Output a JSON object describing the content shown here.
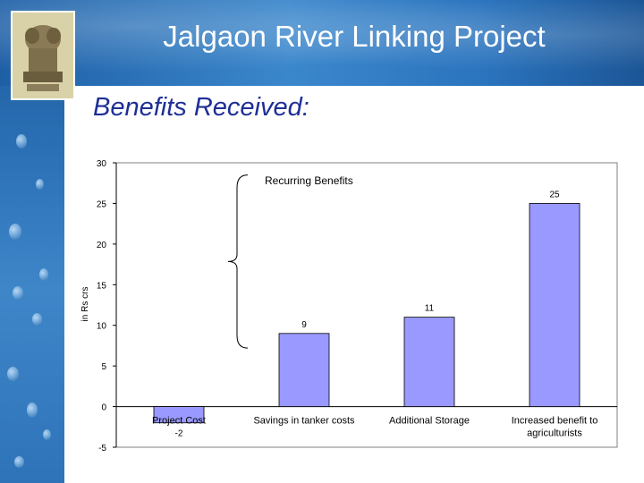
{
  "slide": {
    "title": "Jalgaon River Linking Project",
    "subtitle": "Benefits Received:"
  },
  "annotations": {
    "recurring_benefits": "Recurring Benefits"
  },
  "colors": {
    "bar_fill": "#9999ff",
    "title_text": "#ffffff",
    "subtitle_text": "#1e2f95"
  },
  "chart_data": {
    "type": "bar",
    "title": "",
    "xlabel": "",
    "ylabel": "in Rs crs",
    "ylim": [
      -5,
      30
    ],
    "yticks": [
      30,
      25,
      20,
      15,
      10,
      5,
      0,
      -5
    ],
    "ytick_labels": [
      "30",
      "25",
      "20",
      "15",
      "10",
      "5",
      "0",
      "-5"
    ],
    "categories": [
      "Project Cost",
      "Savings in tanker costs",
      "Additional Storage",
      "Increased benefit to agriculturists"
    ],
    "category_lines": [
      [
        "Project Cost"
      ],
      [
        "Savings in tanker costs"
      ],
      [
        "Additional Storage"
      ],
      [
        "Increased benefit to",
        "agriculturists"
      ]
    ],
    "values": [
      -2,
      9,
      11,
      25
    ],
    "data_labels": [
      "-2",
      "9",
      "11",
      "25"
    ],
    "grid": false,
    "legend": "none"
  }
}
